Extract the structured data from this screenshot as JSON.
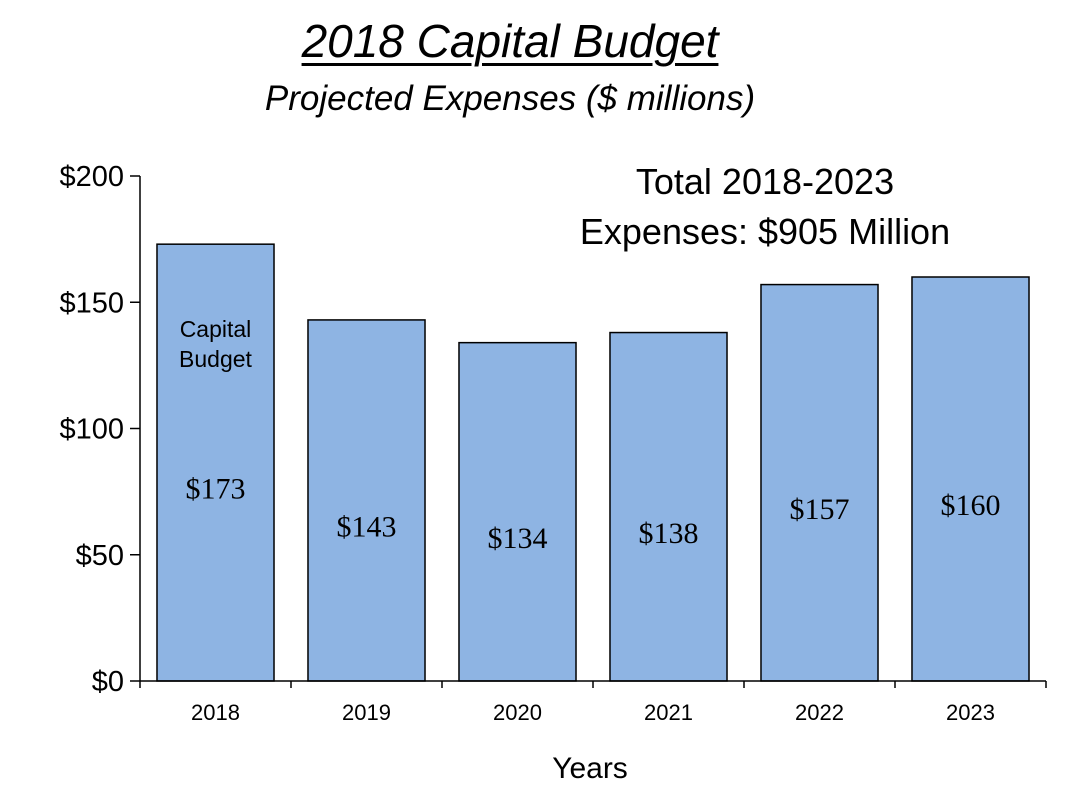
{
  "title": "2018 Capital Budget",
  "subtitle": "Projected Expenses ($ millions)",
  "chart_data": {
    "type": "bar",
    "title": "2018 Capital Budget",
    "subtitle": "Projected Expenses ($ millions)",
    "xlabel": "Years",
    "ylabel": "",
    "categories": [
      "2018",
      "2019",
      "2020",
      "2021",
      "2022",
      "2023"
    ],
    "series": [
      {
        "name": "Capital Budget",
        "name_lines": [
          "Capital",
          "Budget"
        ],
        "values": [
          173,
          143,
          134,
          138,
          157,
          160
        ],
        "labels": [
          "$173",
          "$143",
          "$134",
          "$138",
          "$157",
          "$160"
        ],
        "color": "#8EB4E3"
      }
    ],
    "ylim": [
      0,
      200
    ],
    "yticks": [
      0,
      50,
      100,
      150,
      200
    ],
    "ytick_labels": [
      "$0",
      "$50",
      "$100",
      "$150",
      "$200"
    ],
    "grid": false,
    "bar_edge_color": "#000000",
    "annotation_lines": [
      "Total 2018-2023",
      "Expenses: $905 Million"
    ]
  }
}
